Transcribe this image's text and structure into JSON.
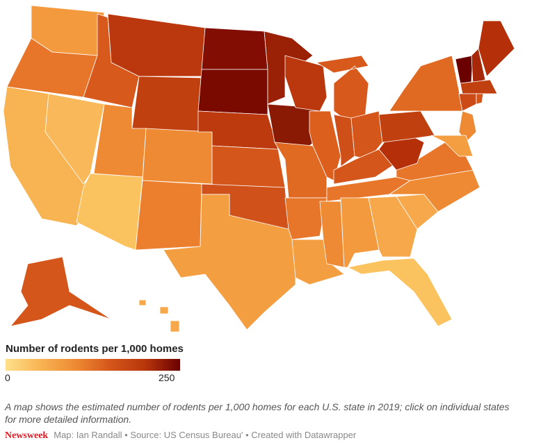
{
  "legend": {
    "title": "Number of rodents per 1,000 homes",
    "min_label": "0",
    "max_label": "250",
    "color_scale": [
      "#fee08b",
      "#f8b452",
      "#ee8a33",
      "#d4561a",
      "#b8360c",
      "#6b0000"
    ]
  },
  "description": "A map shows the estimated number of rodents per 1,000 homes for each U.S. state in 2019; click on individual states for more detailed information.",
  "footer": {
    "brand": "Newsweek",
    "credits": "Map: Ian Randall • Source: US Census Bureau' • Created with Datawrapper"
  },
  "states": [
    {
      "id": "WA",
      "color": "#f49a3e"
    },
    {
      "id": "OR",
      "color": "#e8762a"
    },
    {
      "id": "CA",
      "color": "#f8b452"
    },
    {
      "id": "NV",
      "color": "#f9b95a"
    },
    {
      "id": "ID",
      "color": "#d75a1c"
    },
    {
      "id": "MT",
      "color": "#bb370d"
    },
    {
      "id": "WY",
      "color": "#c1400f"
    },
    {
      "id": "UT",
      "color": "#ee8a33"
    },
    {
      "id": "AZ",
      "color": "#fbc360"
    },
    {
      "id": "CO",
      "color": "#ee8a33"
    },
    {
      "id": "NM",
      "color": "#eb7f2d"
    },
    {
      "id": "ND",
      "color": "#820d02"
    },
    {
      "id": "SD",
      "color": "#7a0a00"
    },
    {
      "id": "NE",
      "color": "#bd390e"
    },
    {
      "id": "KS",
      "color": "#d4561a"
    },
    {
      "id": "OK",
      "color": "#d0521a"
    },
    {
      "id": "TX",
      "color": "#f49e42"
    },
    {
      "id": "MN",
      "color": "#9a2006"
    },
    {
      "id": "IA",
      "color": "#8b1a05"
    },
    {
      "id": "MO",
      "color": "#e06a22"
    },
    {
      "id": "AR",
      "color": "#e8762a"
    },
    {
      "id": "LA",
      "color": "#f49e42"
    },
    {
      "id": "WI",
      "color": "#bb370d"
    },
    {
      "id": "IL",
      "color": "#dc5f1e"
    },
    {
      "id": "MI",
      "color": "#d75a1c"
    },
    {
      "id": "IN",
      "color": "#cf4f18"
    },
    {
      "id": "OH",
      "color": "#d4561a"
    },
    {
      "id": "KY",
      "color": "#d4561a"
    },
    {
      "id": "TN",
      "color": "#e8762a"
    },
    {
      "id": "MS",
      "color": "#ee8a33"
    },
    {
      "id": "AL",
      "color": "#f49a3e"
    },
    {
      "id": "GA",
      "color": "#f6a84a"
    },
    {
      "id": "FL",
      "color": "#fbc360"
    },
    {
      "id": "SC",
      "color": "#f6a84a"
    },
    {
      "id": "NC",
      "color": "#ee8a33"
    },
    {
      "id": "VA",
      "color": "#e8762a"
    },
    {
      "id": "WV",
      "color": "#b53009"
    },
    {
      "id": "PA",
      "color": "#c1400f"
    },
    {
      "id": "NY",
      "color": "#e06a22"
    },
    {
      "id": "VT",
      "color": "#6b0000"
    },
    {
      "id": "NH",
      "color": "#a62808"
    },
    {
      "id": "ME",
      "color": "#b53009"
    },
    {
      "id": "MA",
      "color": "#c1400f"
    },
    {
      "id": "CT",
      "color": "#cc4a15"
    },
    {
      "id": "RI",
      "color": "#d4561a"
    },
    {
      "id": "NJ",
      "color": "#ee8a33"
    },
    {
      "id": "MD",
      "color": "#f49e42"
    },
    {
      "id": "AK",
      "color": "#d4561a"
    },
    {
      "id": "HI",
      "color": "#f6a84a"
    }
  ]
}
